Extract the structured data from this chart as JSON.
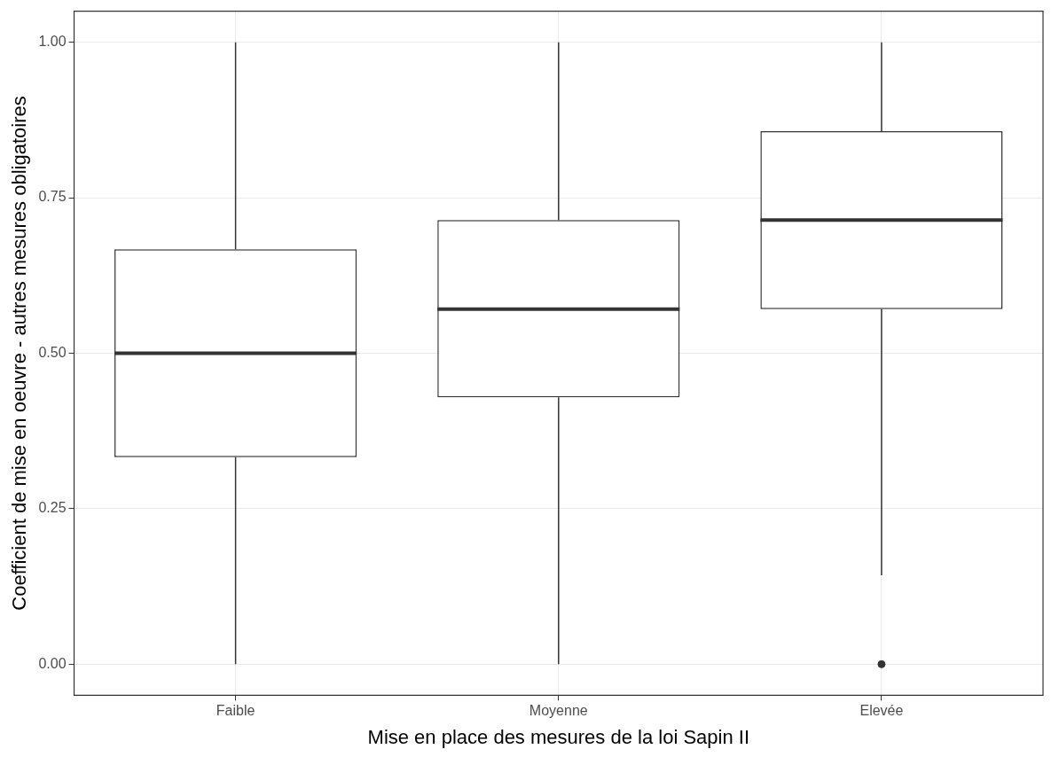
{
  "chart_data": {
    "type": "box",
    "xlabel": "Mise en place des mesures de la loi Sapin II",
    "ylabel": "Coefficient de mise en oeuvre - autres mesures obligatoires",
    "categories": [
      "Faible",
      "Moyenne",
      "Elevée"
    ],
    "boxes": [
      {
        "low": 0,
        "q1": 0.333,
        "median": 0.5,
        "q3": 0.667,
        "high": 1
      },
      {
        "low": 0,
        "q1": 0.429,
        "median": 0.571,
        "q3": 0.714,
        "high": 1
      },
      {
        "low": 0.143,
        "q1": 0.571,
        "median": 0.714,
        "q3": 0.857,
        "high": 1,
        "outliers": [
          0
        ]
      }
    ],
    "color": "#333333",
    "ylim": [
      -0.05,
      1.05
    ],
    "yticks": [
      {
        "value": 0,
        "label": "0.00"
      },
      {
        "value": 0.25,
        "label": "0.25"
      },
      {
        "value": 0.5,
        "label": "0.50"
      },
      {
        "value": 0.75,
        "label": "0.75"
      },
      {
        "value": 1,
        "label": "1.00"
      }
    ],
    "grid": true,
    "legend": false
  }
}
